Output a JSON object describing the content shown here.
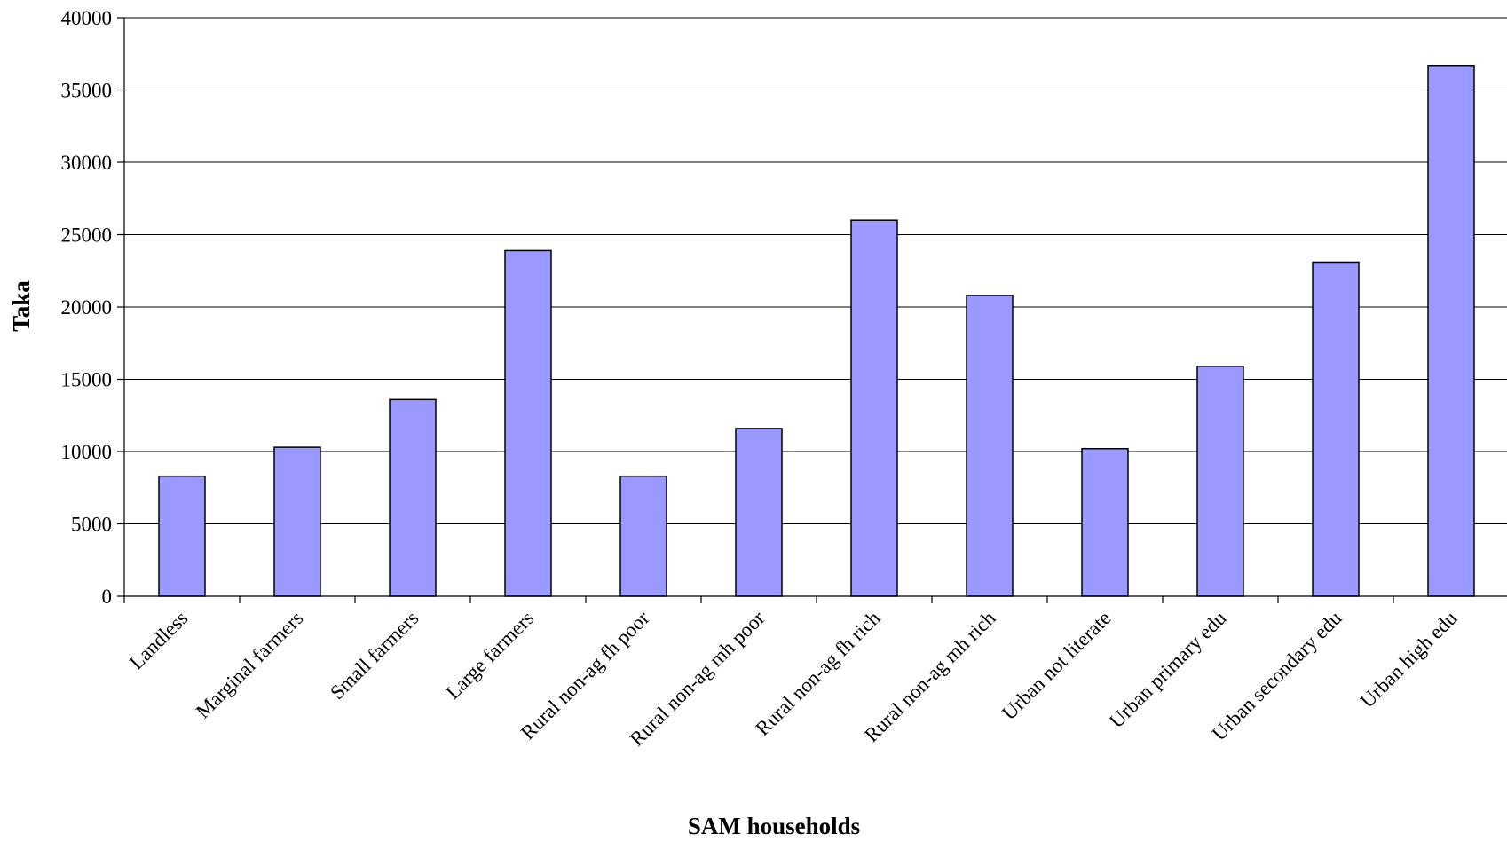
{
  "chart_data": {
    "type": "bar",
    "title": "",
    "xlabel": "SAM households",
    "ylabel": "Taka",
    "ylim": [
      0,
      40000
    ],
    "yticks": [
      0,
      5000,
      10000,
      15000,
      20000,
      25000,
      30000,
      35000,
      40000
    ],
    "grid": true,
    "legend": "none",
    "bar_color": "#9999ff",
    "categories": [
      "Landless",
      "Marginal farmers",
      "Small farmers",
      "Large farmers",
      "Rural non-ag fh poor",
      "Rural non-ag mh poor",
      "Rural non-ag fh rich",
      "Rural non-ag mh rich",
      "Urban not literate",
      "Urban primary edu",
      "Urban secondary edu",
      "Urban high edu"
    ],
    "values": [
      8300,
      10300,
      13600,
      23900,
      8300,
      11600,
      26000,
      20800,
      10200,
      15900,
      23100,
      36700
    ]
  }
}
